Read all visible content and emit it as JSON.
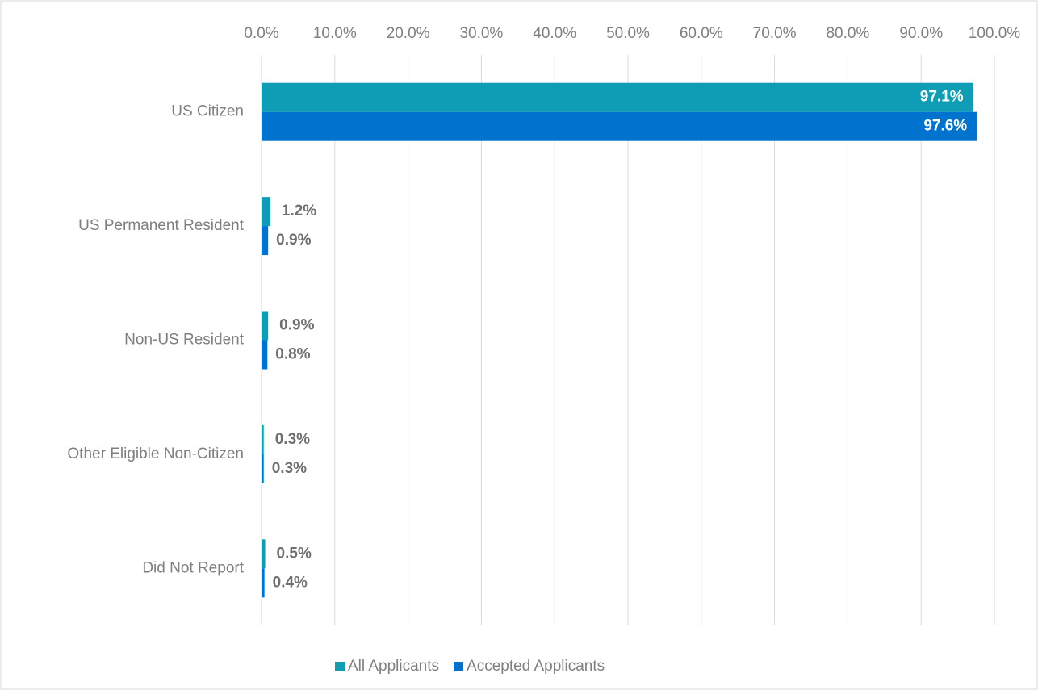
{
  "chart_data": {
    "type": "bar",
    "orientation": "horizontal",
    "categories": [
      "US Citizen",
      "US Permanent Resident",
      "Non-US Resident",
      "Other Eligible Non-Citizen",
      "Did Not Report"
    ],
    "series": [
      {
        "name": "All Applicants",
        "color": "#0e9db5",
        "values": [
          97.1,
          1.2,
          0.9,
          0.3,
          0.5
        ],
        "value_labels": [
          "97.1%",
          "1.2%",
          "0.9%",
          "0.3%",
          "0.5%"
        ]
      },
      {
        "name": "Accepted Applicants",
        "color": "#0073cf",
        "values": [
          97.6,
          0.9,
          0.8,
          0.3,
          0.4
        ],
        "value_labels": [
          "97.6%",
          "0.9%",
          "0.8%",
          "0.3%",
          "0.4%"
        ]
      }
    ],
    "xlim": [
      0,
      100
    ],
    "xticks": [
      {
        "value": 0,
        "label": "0.0%"
      },
      {
        "value": 10,
        "label": "10.0%"
      },
      {
        "value": 20,
        "label": "20.0%"
      },
      {
        "value": 30,
        "label": "30.0%"
      },
      {
        "value": 40,
        "label": "40.0%"
      },
      {
        "value": 50,
        "label": "50.0%"
      },
      {
        "value": 60,
        "label": "60.0%"
      },
      {
        "value": 70,
        "label": "70.0%"
      },
      {
        "value": 80,
        "label": "80.0%"
      },
      {
        "value": 90,
        "label": "90.0%"
      },
      {
        "value": 100,
        "label": "100.0%"
      }
    ],
    "grid": true,
    "legend": "bottom"
  }
}
